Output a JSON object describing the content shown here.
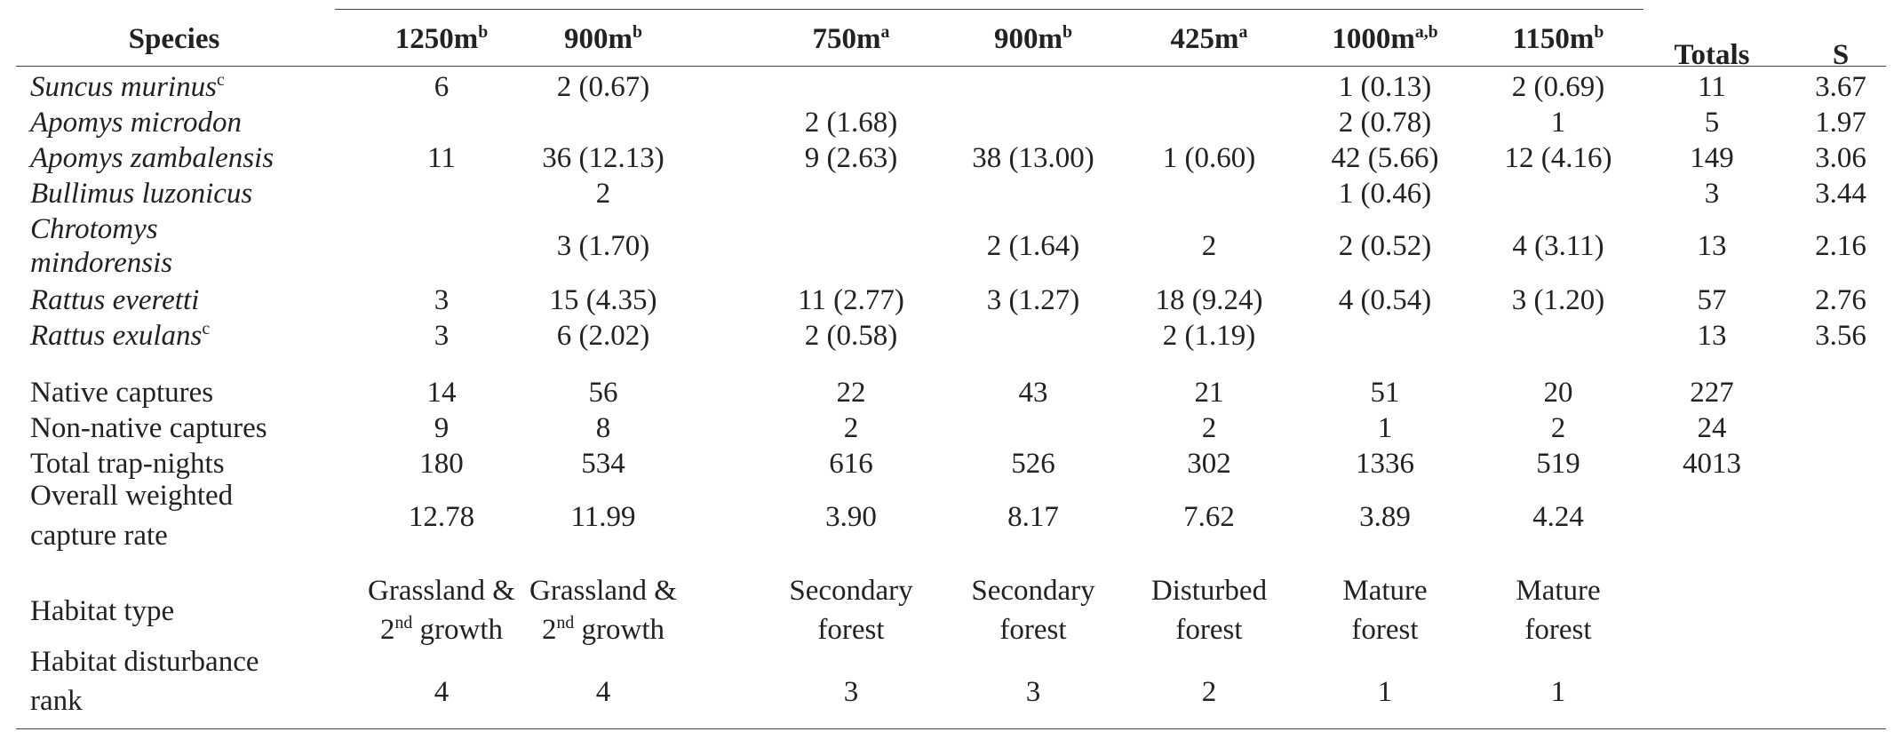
{
  "table": {
    "headers": {
      "species": "Species",
      "sites": [
        {
          "label": "1250m",
          "sup": "b"
        },
        {
          "label": "900m",
          "sup": "b"
        },
        {
          "label": "750m",
          "sup": "a"
        },
        {
          "label": "900m",
          "sup": "b"
        },
        {
          "label": "425m",
          "sup": "a"
        },
        {
          "label": "1000m",
          "sup": "a,b"
        },
        {
          "label": "1150m",
          "sup": "b"
        }
      ],
      "totals": "Totals",
      "s": "S"
    },
    "species_rows": [
      {
        "name": "Suncus murinus",
        "sup": "c",
        "vals": [
          "6",
          "2 (0.67)",
          "",
          "",
          "",
          "1 (0.13)",
          "2 (0.69)"
        ],
        "total": "11",
        "s": "3.67"
      },
      {
        "name": "Apomys microdon",
        "sup": "",
        "vals": [
          "",
          "",
          "2 (1.68)",
          "",
          "",
          "2 (0.78)",
          "1"
        ],
        "total": "5",
        "s": "1.97"
      },
      {
        "name": "Apomys zambalensis",
        "sup": "",
        "vals": [
          "11",
          "36 (12.13)",
          "9 (2.63)",
          "38 (13.00)",
          "1 (0.60)",
          "42 (5.66)",
          "12 (4.16)"
        ],
        "total": "149",
        "s": "3.06"
      },
      {
        "name": "Bullimus luzonicus",
        "sup": "",
        "vals": [
          "",
          "2",
          "",
          "",
          "",
          "1 (0.46)",
          ""
        ],
        "total": "3",
        "s": "3.44"
      },
      {
        "name_line1": "Chrotomys",
        "name_line2": "mindorensis",
        "sup": "",
        "vals": [
          "",
          "3 (1.70)",
          "",
          "2 (1.64)",
          "2",
          "2 (0.52)",
          "4 (3.11)"
        ],
        "total": "13",
        "s": "2.16"
      },
      {
        "name": "Rattus everetti",
        "sup": "",
        "vals": [
          "3",
          "15 (4.35)",
          "11 (2.77)",
          "3 (1.27)",
          "18 (9.24)",
          "4 (0.54)",
          "3 (1.20)"
        ],
        "total": "57",
        "s": "2.76"
      },
      {
        "name": "Rattus exulans",
        "sup": "c",
        "vals": [
          "3",
          "6 (2.02)",
          "2 (0.58)",
          "",
          "2 (1.19)",
          "",
          ""
        ],
        "total": "13",
        "s": "3.56"
      }
    ],
    "summary_rows": [
      {
        "label": "Native captures",
        "vals": [
          "14",
          "56",
          "22",
          "43",
          "21",
          "51",
          "20"
        ],
        "total": "227"
      },
      {
        "label": "Non-native captures",
        "vals": [
          "9",
          "8",
          "2",
          "",
          "2",
          "1",
          "2"
        ],
        "total": "24"
      },
      {
        "label": "Total trap-nights",
        "vals": [
          "180",
          "534",
          "616",
          "526",
          "302",
          "1336",
          "519"
        ],
        "total": "4013"
      },
      {
        "label_line1": "Overall weighted",
        "label_line2": "capture rate",
        "vals": [
          "12.78",
          "11.99",
          "3.90",
          "8.17",
          "7.62",
          "3.89",
          "4.24"
        ]
      }
    ],
    "habitat_type": {
      "label": "Habitat type",
      "vals": [
        {
          "l1": "Grassland &",
          "l2a": "2",
          "l2sup": "nd",
          "l2b": " growth"
        },
        {
          "l1": "Grassland &",
          "l2a": "2",
          "l2sup": "nd",
          "l2b": " growth"
        },
        {
          "l1": "Secondary",
          "l2a": "forest",
          "l2sup": "",
          "l2b": ""
        },
        {
          "l1": "Secondary",
          "l2a": "forest",
          "l2sup": "",
          "l2b": ""
        },
        {
          "l1": "Disturbed",
          "l2a": "forest",
          "l2sup": "",
          "l2b": ""
        },
        {
          "l1": "Mature",
          "l2a": "forest",
          "l2sup": "",
          "l2b": ""
        },
        {
          "l1": "Mature",
          "l2a": "forest",
          "l2sup": "",
          "l2b": ""
        }
      ]
    },
    "disturbance": {
      "label_line1": "Habitat disturbance",
      "label_line2": "rank",
      "vals": [
        "4",
        "4",
        "3",
        "3",
        "2",
        "1",
        "1"
      ]
    }
  }
}
